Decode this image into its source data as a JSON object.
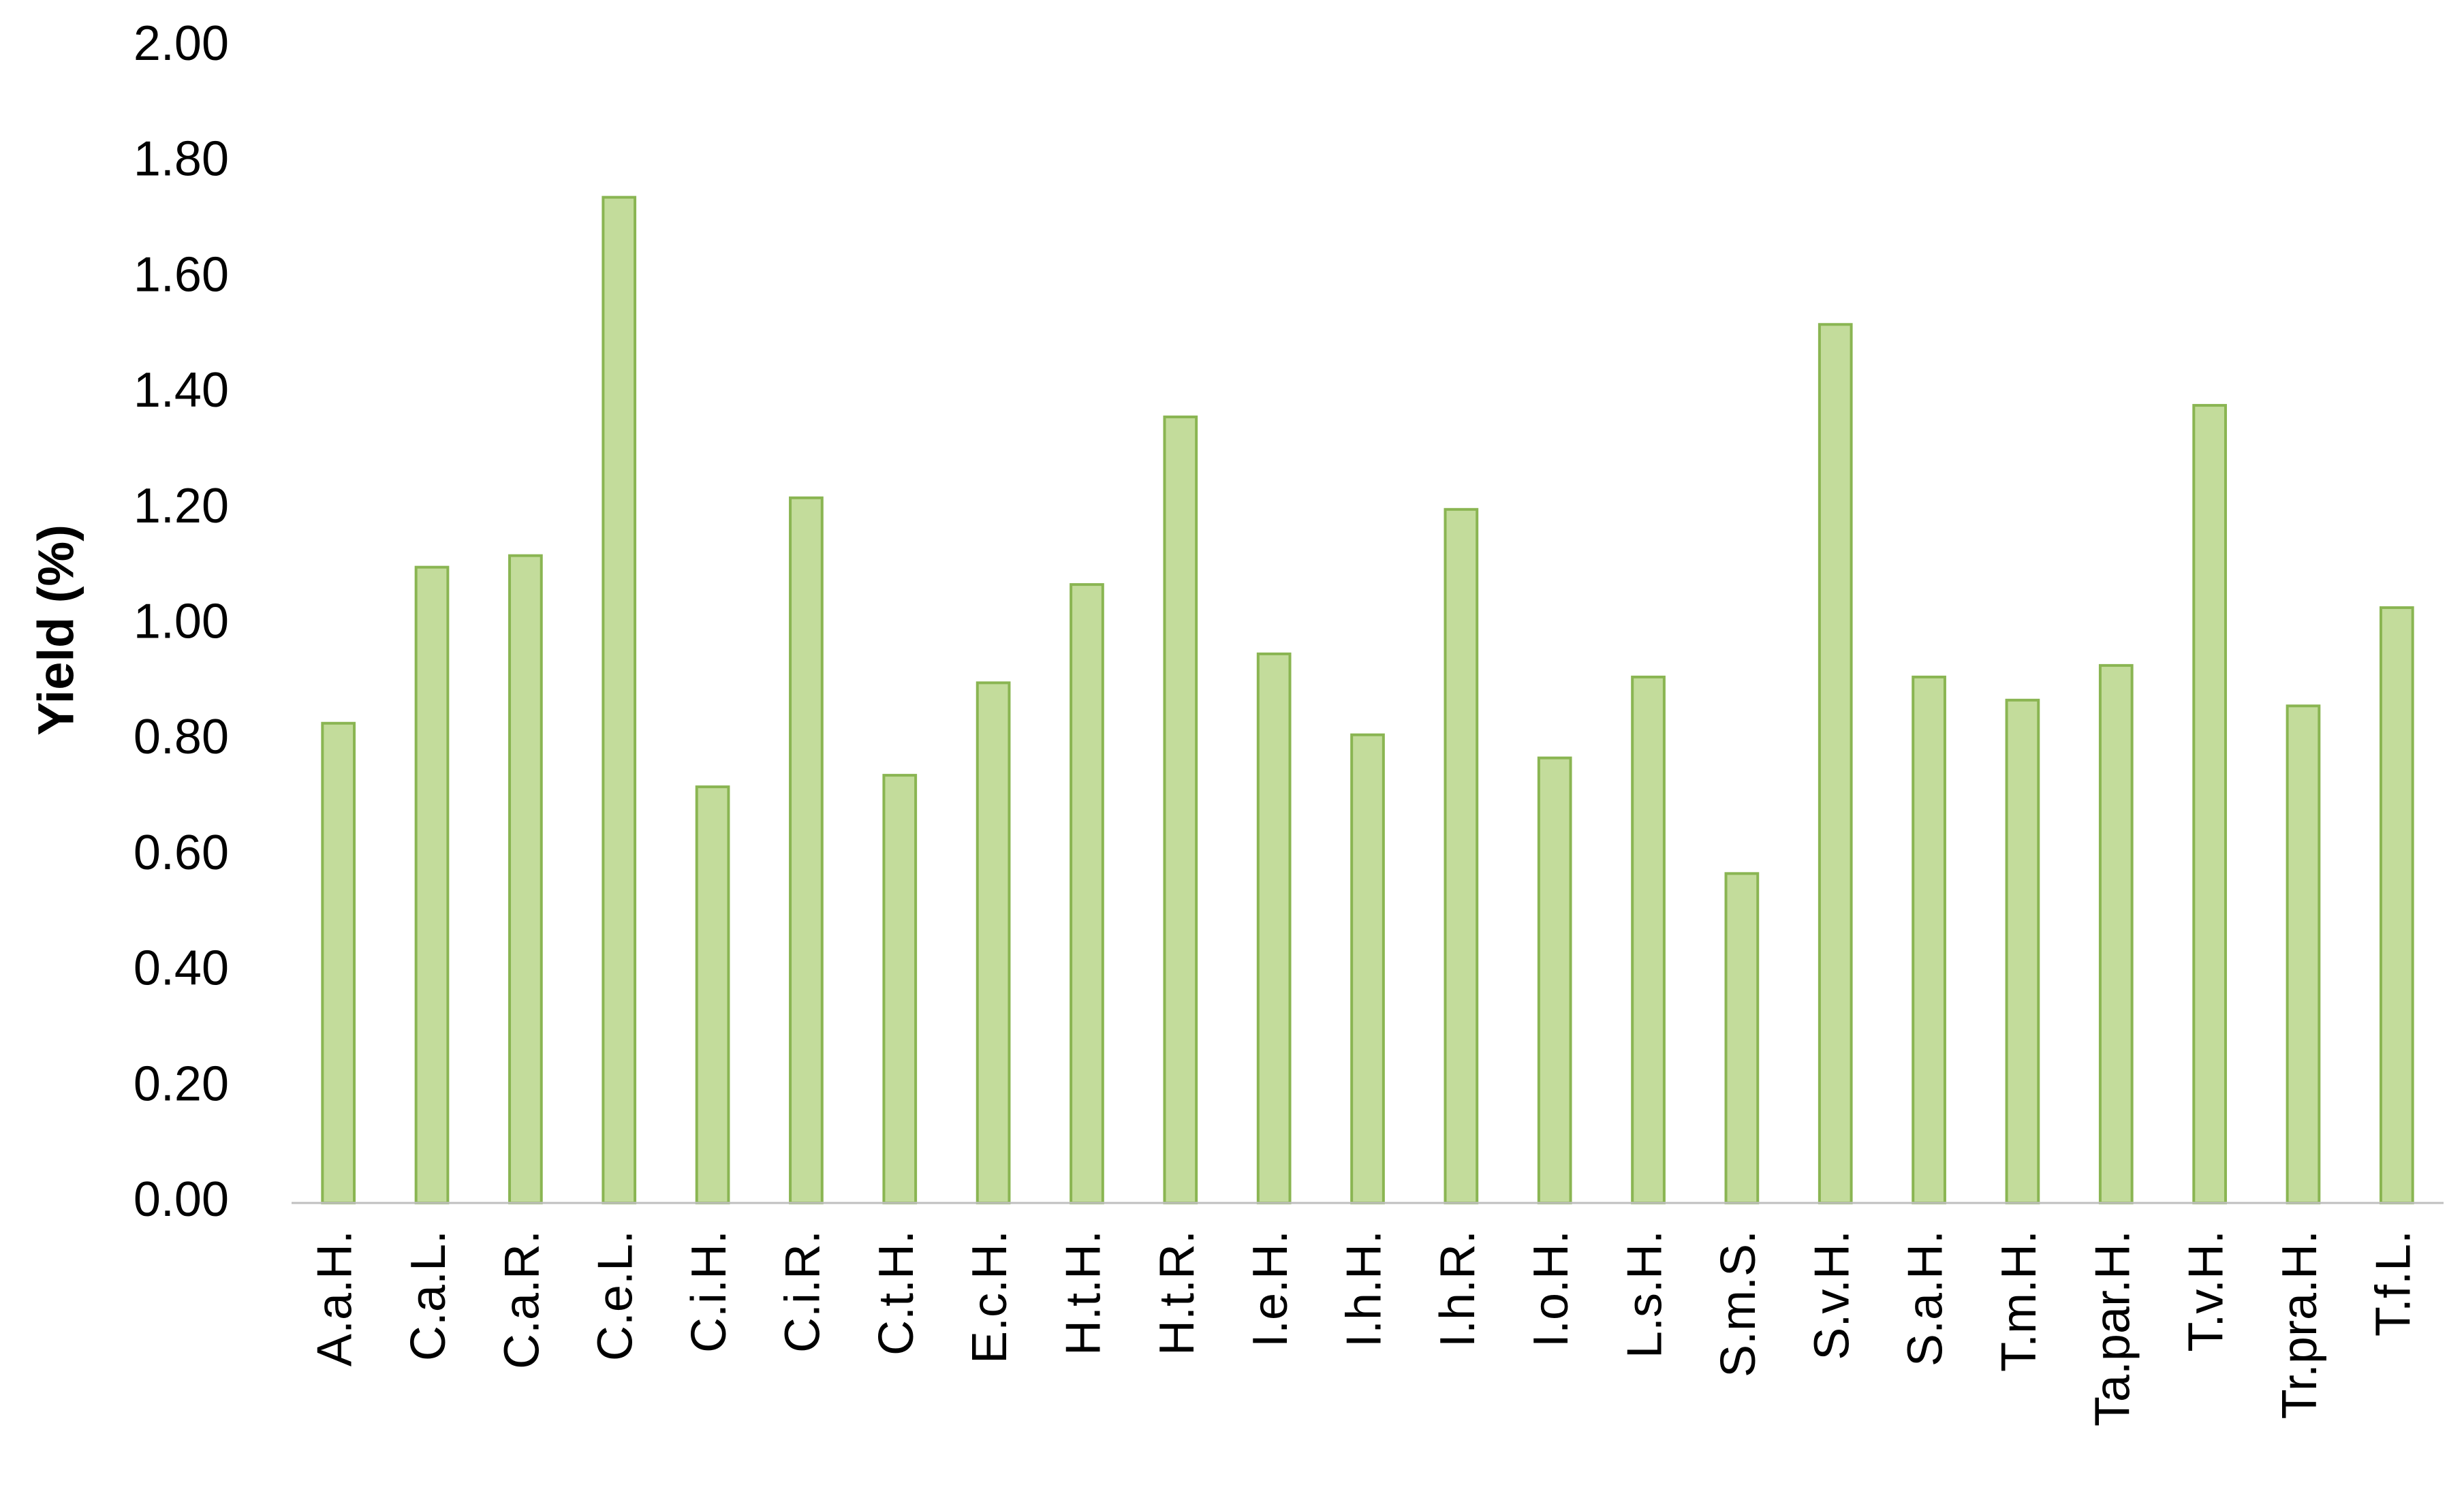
{
  "chart_data": {
    "type": "bar",
    "y_label": "Yield (%)",
    "categories": [
      "A.a.H.",
      "C.a.L.",
      "C.a.R.",
      "C.e.L.",
      "C.i.H.",
      "C.i.R.",
      "C.t.H.",
      "E.c.H.",
      "H.t.H.",
      "H.t.R.",
      "I.e.H.",
      "I.h.H.",
      "I.h.R.",
      "I.o.H.",
      "L.s.H.",
      "S.m.S.",
      "S.v.H.",
      "S.a.H.",
      "T.m.H.",
      "Ta.par.H.",
      "T.v.H.",
      "Tr.pra.H.",
      "T.f.L."
    ],
    "values": [
      0.83,
      1.1,
      1.12,
      1.74,
      0.72,
      1.22,
      0.74,
      0.9,
      1.07,
      1.36,
      0.95,
      0.81,
      1.2,
      0.77,
      0.91,
      0.57,
      1.52,
      0.91,
      0.87,
      0.93,
      1.38,
      0.86,
      1.03
    ],
    "color": "#c3dc9b",
    "edge_color": "#8ab552",
    "ylim": [
      0,
      2
    ],
    "yticks": [
      {
        "value": 0,
        "label": "0.00"
      },
      {
        "value": 0.2,
        "label": "0.20"
      },
      {
        "value": 0.4,
        "label": "0.40"
      },
      {
        "value": 0.6,
        "label": "0.60"
      },
      {
        "value": 0.8,
        "label": "0.80"
      },
      {
        "value": 1,
        "label": "1.00"
      },
      {
        "value": 1.2,
        "label": "1.20"
      },
      {
        "value": 1.4,
        "label": "1.40"
      },
      {
        "value": 1.6,
        "label": "1.60"
      },
      {
        "value": 1.8,
        "label": "1.80"
      },
      {
        "value": 2,
        "label": "2.00"
      }
    ],
    "grid": false
  }
}
